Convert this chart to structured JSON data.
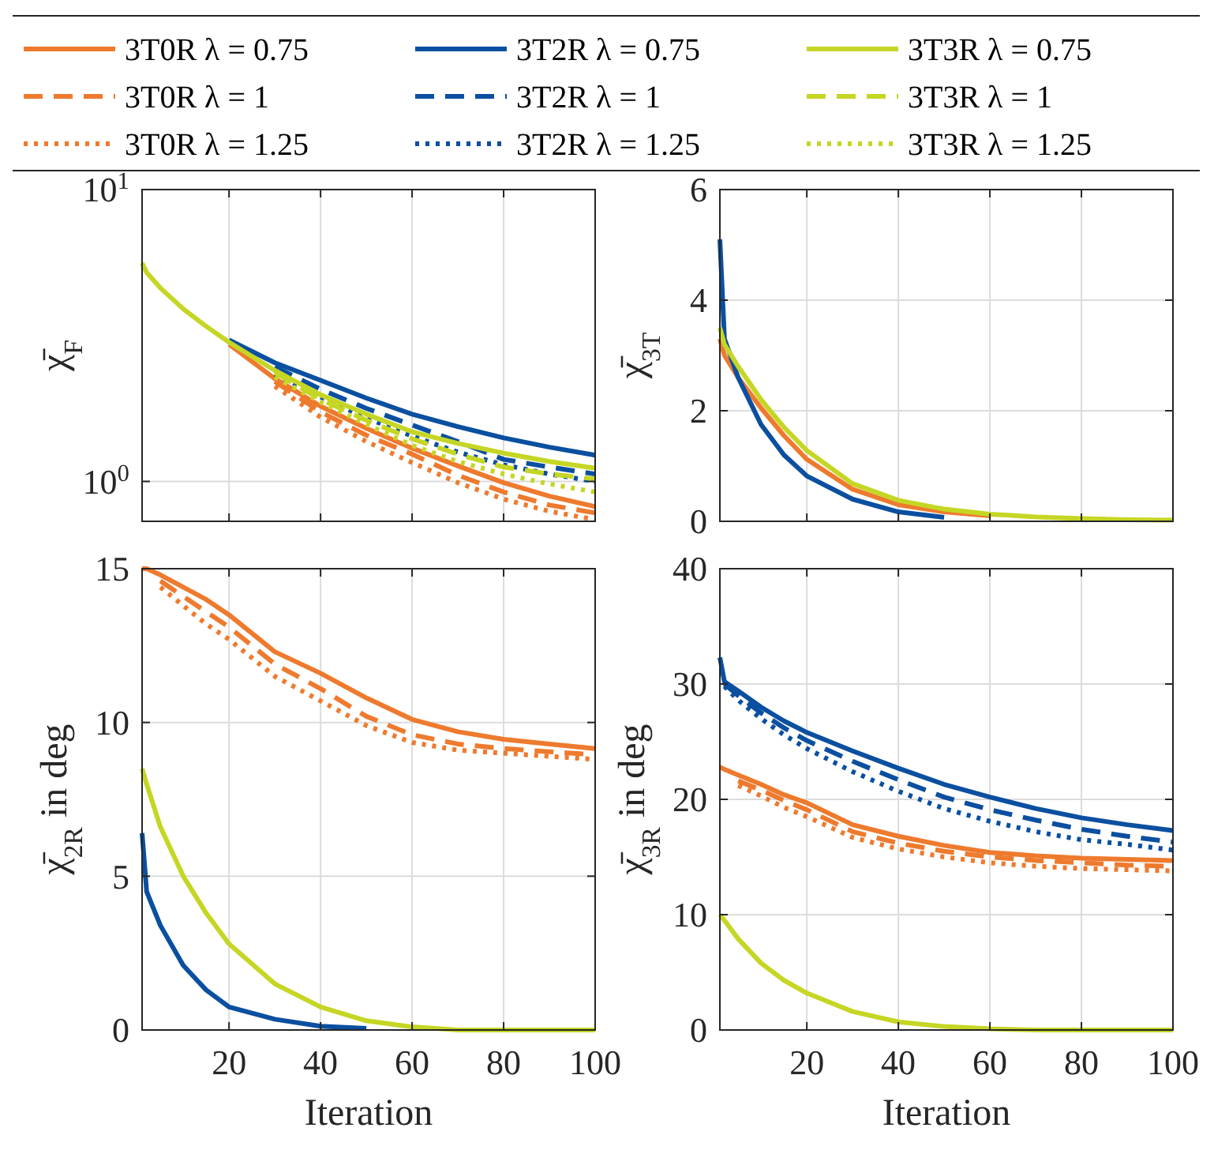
{
  "chart_data": [
    {
      "type": "line",
      "ylabel": "χ̄$_{F}$",
      "log": "y",
      "grid": true,
      "legend": "top",
      "tick_labels": "y",
      "x": [
        1,
        2,
        5,
        10,
        15,
        20,
        30,
        40,
        50,
        60,
        70,
        80,
        90,
        100
      ],
      "xlim": [
        1,
        100
      ],
      "xticks": [
        20,
        40,
        60,
        80,
        100
      ],
      "ylim": [
        0.73,
        10
      ],
      "yticks": [
        {
          "value": 1,
          "label": "10$^{0}$"
        },
        {
          "value": 10,
          "label": "10$^{1}$"
        }
      ],
      "series": [
        {
          "name": "3T0R λ = 0.75",
          "color": "#ee7a2e",
          "line_style": "solid",
          "values": [
            null,
            null,
            null,
            null,
            null,
            2.95,
            2.25,
            1.81,
            1.52,
            1.3,
            1.13,
            0.99,
            0.89,
            0.82
          ]
        },
        {
          "name": "3T0R λ = 1",
          "color": "#ee7a2e",
          "line_style": "dashed",
          "values": [
            null,
            null,
            null,
            null,
            null,
            null,
            2.2,
            1.73,
            1.44,
            1.24,
            1.05,
            0.92,
            0.83,
            0.78
          ]
        },
        {
          "name": "3T0R λ = 1.25",
          "color": "#ee7a2e",
          "line_style": "dotted",
          "values": [
            null,
            null,
            null,
            null,
            null,
            null,
            2.12,
            1.66,
            1.37,
            1.16,
            0.99,
            0.87,
            0.79,
            0.74
          ]
        },
        {
          "name": "3T2R λ = 0.75",
          "color": "#0b4fa0",
          "line_style": "solid",
          "values": [
            null,
            null,
            null,
            null,
            null,
            3.05,
            2.55,
            2.22,
            1.93,
            1.7,
            1.54,
            1.41,
            1.31,
            1.23
          ]
        },
        {
          "name": "3T2R λ = 1",
          "color": "#0b4fa0",
          "line_style": "dashed",
          "values": [
            null,
            null,
            null,
            null,
            null,
            null,
            2.47,
            2.07,
            1.78,
            1.56,
            1.37,
            1.19,
            1.12,
            1.06
          ]
        },
        {
          "name": "3T2R λ = 1.25",
          "color": "#0b4fa0",
          "line_style": "dotted",
          "values": [
            null,
            null,
            null,
            null,
            null,
            null,
            2.33,
            1.95,
            1.65,
            1.43,
            1.26,
            1.14,
            1.06,
            1.0
          ]
        },
        {
          "name": "3T3R λ = 0.75",
          "color": "#c5d624",
          "line_style": "solid",
          "values": [
            5.6,
            5.2,
            4.6,
            3.9,
            3.4,
            3.0,
            2.4,
            1.98,
            1.7,
            1.48,
            1.35,
            1.25,
            1.17,
            1.11
          ]
        },
        {
          "name": "3T3R λ = 1",
          "color": "#c5d624",
          "line_style": "dashed",
          "values": [
            null,
            null,
            null,
            null,
            null,
            null,
            2.36,
            1.91,
            1.62,
            1.4,
            1.24,
            1.12,
            1.06,
            1.02
          ]
        },
        {
          "name": "3T3R λ = 1.25",
          "color": "#c5d624",
          "line_style": "dotted",
          "values": [
            null,
            null,
            null,
            null,
            null,
            null,
            2.28,
            1.87,
            1.57,
            1.33,
            1.17,
            1.06,
            0.98,
            0.92
          ]
        }
      ]
    },
    {
      "type": "line",
      "ylabel": "χ̄$_{3T}$",
      "grid": true,
      "tick_labels": "y",
      "x": [
        1,
        2,
        5,
        10,
        15,
        20,
        30,
        40,
        50,
        60,
        70,
        80,
        90,
        100
      ],
      "xlim": [
        1,
        100
      ],
      "xticks": [
        20,
        40,
        60,
        80,
        100
      ],
      "ylim": [
        0,
        6
      ],
      "yticks": [
        0,
        2,
        4,
        6
      ],
      "series": [
        {
          "color": "#ee7a2e",
          "line_style": "solid",
          "values": [
            3.3,
            3.0,
            2.6,
            2.05,
            1.55,
            1.12,
            0.58,
            0.3,
            0.17,
            0.1,
            null,
            null,
            null,
            null
          ]
        },
        {
          "color": "#0b4fa0",
          "line_style": "solid",
          "values": [
            5.1,
            3.3,
            2.6,
            1.75,
            1.2,
            0.82,
            0.4,
            0.17,
            0.07,
            null,
            null,
            null,
            null,
            null
          ]
        },
        {
          "color": "#c5d624",
          "line_style": "solid",
          "values": [
            3.5,
            3.2,
            2.8,
            2.2,
            1.7,
            1.28,
            0.68,
            0.38,
            0.22,
            0.13,
            0.08,
            0.05,
            0.03,
            0.02
          ]
        }
      ]
    },
    {
      "type": "line",
      "xlabel": "Iteration",
      "ylabel": "χ̄$_{2R}$ in deg",
      "grid": true,
      "x": [
        1,
        2,
        5,
        10,
        15,
        20,
        30,
        40,
        50,
        60,
        70,
        80,
        90,
        100
      ],
      "xlim": [
        1,
        100
      ],
      "xticks": [
        20,
        40,
        60,
        80,
        100
      ],
      "ylim": [
        0,
        15
      ],
      "yticks": [
        0,
        5,
        10,
        15
      ],
      "series": [
        {
          "color": "#ee7a2e",
          "line_style": "solid",
          "values": [
            15.0,
            15.0,
            14.8,
            14.4,
            14.0,
            13.5,
            12.3,
            11.6,
            10.8,
            10.1,
            9.7,
            9.45,
            9.3,
            9.15
          ]
        },
        {
          "color": "#ee7a2e",
          "line_style": "dashed",
          "values": [
            null,
            null,
            14.6,
            14.1,
            13.6,
            13.1,
            11.9,
            11.1,
            10.2,
            9.6,
            9.3,
            9.15,
            9.05,
            8.95
          ]
        },
        {
          "color": "#ee7a2e",
          "line_style": "dotted",
          "values": [
            null,
            null,
            14.4,
            13.8,
            13.2,
            12.7,
            11.5,
            10.7,
            9.9,
            9.35,
            9.1,
            9.0,
            8.9,
            8.8
          ]
        },
        {
          "color": "#0b4fa0",
          "line_style": "solid",
          "values": [
            6.4,
            4.5,
            3.4,
            2.1,
            1.3,
            0.75,
            0.35,
            0.12,
            0.05,
            null,
            null,
            null,
            null,
            null
          ]
        },
        {
          "color": "#c5d624",
          "line_style": "solid",
          "values": [
            8.5,
            8.0,
            6.6,
            5.0,
            3.8,
            2.8,
            1.5,
            0.75,
            0.3,
            0.1,
            0,
            0,
            0,
            0
          ]
        }
      ]
    },
    {
      "type": "line",
      "xlabel": "Iteration",
      "ylabel": "χ̄$_{3R}$ in deg",
      "grid": true,
      "x": [
        1,
        2,
        5,
        10,
        15,
        20,
        30,
        40,
        50,
        60,
        70,
        80,
        90,
        100
      ],
      "xlim": [
        1,
        100
      ],
      "xticks": [
        20,
        40,
        60,
        80,
        100
      ],
      "ylim": [
        0,
        40
      ],
      "yticks": [
        0,
        10,
        20,
        30,
        40
      ],
      "series": [
        {
          "color": "#ee7a2e",
          "line_style": "solid",
          "values": [
            22.8,
            22.6,
            22.1,
            21.3,
            20.4,
            19.7,
            17.8,
            16.8,
            16.0,
            15.4,
            15.1,
            14.9,
            14.8,
            14.7
          ]
        },
        {
          "color": "#ee7a2e",
          "line_style": "dashed",
          "values": [
            null,
            null,
            21.6,
            20.8,
            19.9,
            19.1,
            17.2,
            16.2,
            15.5,
            15.0,
            14.7,
            14.5,
            14.3,
            14.2
          ]
        },
        {
          "color": "#ee7a2e",
          "line_style": "dotted",
          "values": [
            null,
            null,
            21.2,
            20.3,
            19.3,
            18.5,
            16.7,
            15.7,
            15.0,
            14.5,
            14.2,
            14.0,
            13.9,
            13.8
          ]
        },
        {
          "color": "#0b4fa0",
          "line_style": "solid",
          "values": [
            32.3,
            30.2,
            29.4,
            28.0,
            26.8,
            25.8,
            24.2,
            22.7,
            21.3,
            20.2,
            19.2,
            18.4,
            17.8,
            17.3
          ]
        },
        {
          "color": "#0b4fa0",
          "line_style": "dashed",
          "values": [
            null,
            30.0,
            29.0,
            27.5,
            26.2,
            25.1,
            23.3,
            21.7,
            20.2,
            19.1,
            18.2,
            17.4,
            16.8,
            16.3
          ]
        },
        {
          "color": "#0b4fa0",
          "line_style": "dotted",
          "values": [
            null,
            29.8,
            28.6,
            27.0,
            25.6,
            24.4,
            22.4,
            20.7,
            19.2,
            18.1,
            17.2,
            16.5,
            16.1,
            15.6
          ]
        },
        {
          "color": "#c5d624",
          "line_style": "solid",
          "values": [
            10,
            9.5,
            7.9,
            5.8,
            4.3,
            3.2,
            1.6,
            0.7,
            0.3,
            0.1,
            0,
            0,
            0,
            0
          ]
        }
      ]
    }
  ]
}
